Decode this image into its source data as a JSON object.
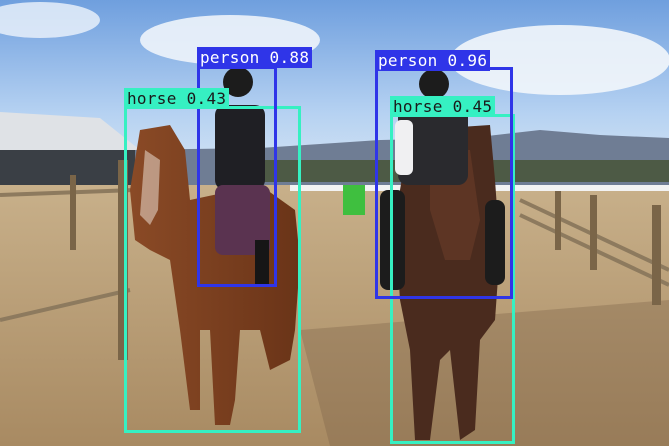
{
  "image": {
    "description_icon": "photo-icon",
    "colors": {
      "sky": "#9cc2ee",
      "ground": "#b89a72",
      "person_box": "#2f35e8",
      "horse_box": "#36f0c2"
    }
  },
  "detections": [
    {
      "label": "horse 0.43",
      "cls": "horse"
    },
    {
      "label": "person 0.88",
      "cls": "person"
    },
    {
      "label": "horse 0.45",
      "cls": "horse"
    },
    {
      "label": "person 0.96",
      "cls": "person"
    }
  ]
}
